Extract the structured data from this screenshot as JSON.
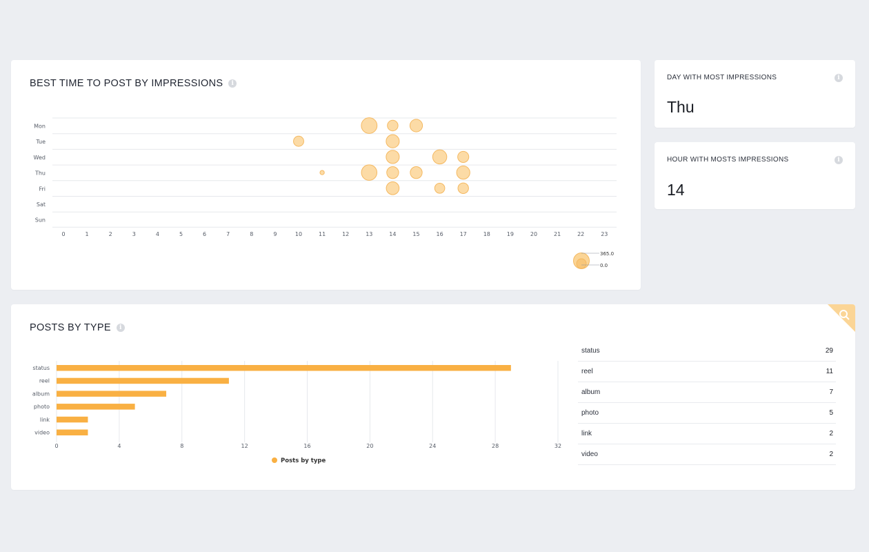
{
  "best_time": {
    "title": "BEST TIME TO POST BY IMPRESSIONS",
    "chart_data": {
      "type": "scatter",
      "days": [
        "Mon",
        "Tue",
        "Wed",
        "Thu",
        "Fri",
        "Sat",
        "Sun"
      ],
      "hours": [
        "0",
        "1",
        "2",
        "3",
        "4",
        "5",
        "6",
        "7",
        "8",
        "9",
        "10",
        "11",
        "12",
        "13",
        "14",
        "15",
        "16",
        "17",
        "18",
        "19",
        "20",
        "21",
        "22",
        "23"
      ],
      "points": [
        {
          "day": "Mon",
          "hour": 13,
          "value": 330
        },
        {
          "day": "Mon",
          "hour": 14,
          "value": 150
        },
        {
          "day": "Mon",
          "hour": 15,
          "value": 210
        },
        {
          "day": "Tue",
          "hour": 10,
          "value": 140
        },
        {
          "day": "Tue",
          "hour": 14,
          "value": 230
        },
        {
          "day": "Wed",
          "hour": 14,
          "value": 230
        },
        {
          "day": "Wed",
          "hour": 16,
          "value": 265
        },
        {
          "day": "Wed",
          "hour": 17,
          "value": 165
        },
        {
          "day": "Thu",
          "hour": 11,
          "value": 25
        },
        {
          "day": "Thu",
          "hour": 13,
          "value": 320
        },
        {
          "day": "Thu",
          "hour": 14,
          "value": 190
        },
        {
          "day": "Thu",
          "hour": 15,
          "value": 190
        },
        {
          "day": "Thu",
          "hour": 17,
          "value": 235
        },
        {
          "day": "Fri",
          "hour": 14,
          "value": 220
        },
        {
          "day": "Fri",
          "hour": 16,
          "value": 135
        },
        {
          "day": "Fri",
          "hour": 17,
          "value": 150
        }
      ],
      "size_legend": {
        "max_label": "365.0",
        "min_label": "0.0",
        "max": 365.0,
        "min": 0.0
      },
      "color": "#fbd596"
    }
  },
  "day_stat": {
    "title": "DAY WITH MOST IMPRESSIONS",
    "value": "Thu"
  },
  "hour_stat": {
    "title": "HOUR WITH MOSTS IMPRESSIONS",
    "value": "14"
  },
  "posts_by_type": {
    "title": "POSTS BY TYPE",
    "chart_data": {
      "type": "bar",
      "orientation": "horizontal",
      "categories": [
        "status",
        "reel",
        "album",
        "photo",
        "link",
        "video"
      ],
      "series": [
        {
          "name": "Posts by type",
          "values": [
            29,
            11,
            7,
            5,
            2,
            2
          ]
        }
      ],
      "xticks": [
        "0",
        "4",
        "8",
        "12",
        "16",
        "20",
        "24",
        "28",
        "32"
      ],
      "xlim": [
        0,
        32
      ],
      "color": "#f9b043"
    },
    "table": [
      {
        "label": "status",
        "value": "29"
      },
      {
        "label": "reel",
        "value": "11"
      },
      {
        "label": "album",
        "value": "7"
      },
      {
        "label": "photo",
        "value": "5"
      },
      {
        "label": "link",
        "value": "2"
      },
      {
        "label": "video",
        "value": "2"
      }
    ],
    "badge_icon": "search-icon"
  }
}
